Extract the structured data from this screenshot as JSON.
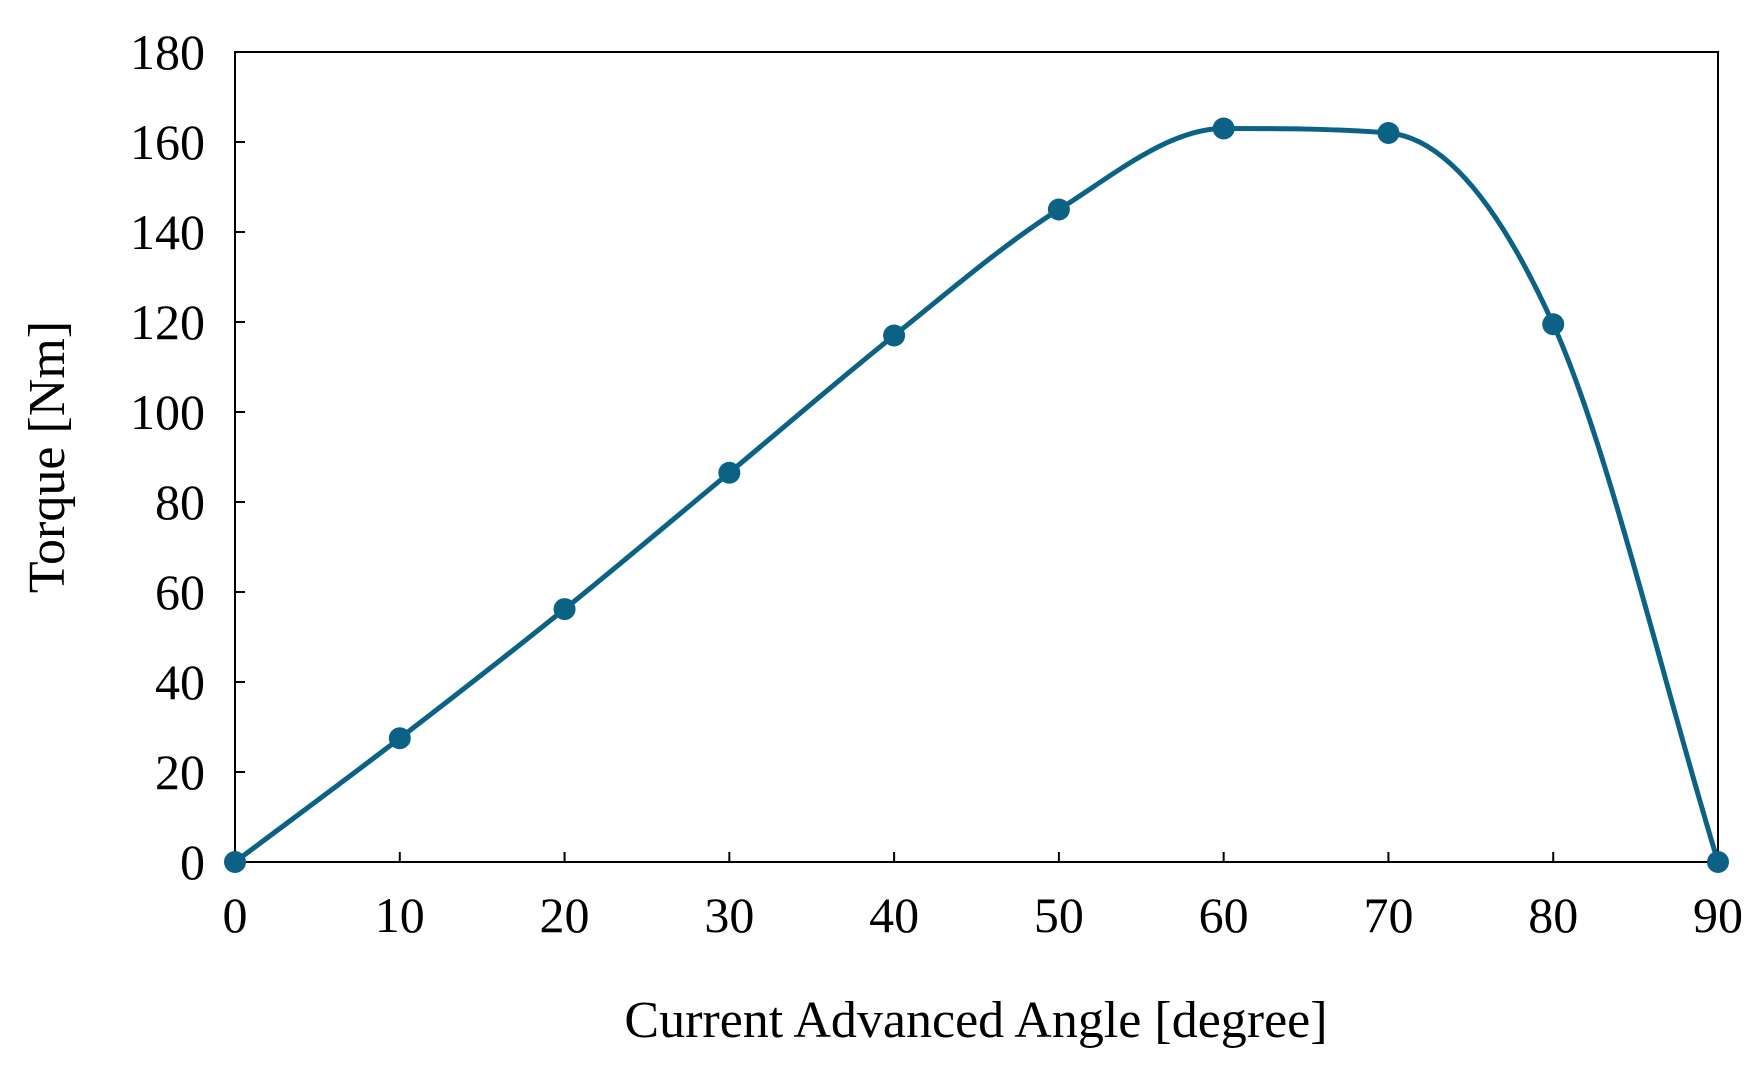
{
  "chart_data": {
    "type": "line",
    "title": "",
    "xlabel": "Current Advanced Angle [degree]",
    "ylabel": "Torque [Nm]",
    "xlim": [
      0,
      90
    ],
    "ylim": [
      0,
      180
    ],
    "xticks": [
      0,
      10,
      20,
      30,
      40,
      50,
      60,
      70,
      80,
      90
    ],
    "yticks": [
      0,
      20,
      40,
      60,
      80,
      100,
      120,
      140,
      160,
      180
    ],
    "grid": false,
    "legend": "none",
    "smooth": true,
    "marker": "circle",
    "color": "#0b6285",
    "series": [
      {
        "x": [
          0,
          10,
          20,
          30,
          40,
          50,
          60,
          70,
          80,
          90
        ],
        "y": [
          0,
          27.5,
          56.2,
          86.5,
          117,
          145,
          163,
          162,
          119.5,
          0
        ]
      }
    ]
  }
}
